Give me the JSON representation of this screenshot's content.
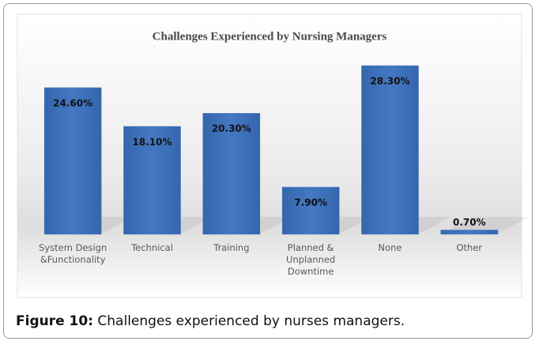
{
  "chart_data": {
    "type": "bar",
    "title": "Challenges Experienced by Nursing Managers",
    "categories": [
      "System Design &Functionality",
      "Technical",
      "Training",
      "Planned & Unplanned Downtime",
      "None",
      "Other"
    ],
    "values": [
      24.6,
      18.1,
      20.3,
      7.9,
      28.3,
      0.7
    ],
    "value_labels": [
      "24.60%",
      "18.10%",
      "20.30%",
      "7.90%",
      "28.30%",
      "0.70%"
    ],
    "color": "#3d6fb6"
  },
  "caption": {
    "label": "Figure 10:",
    "text": "Challenges experienced by nurses managers."
  }
}
